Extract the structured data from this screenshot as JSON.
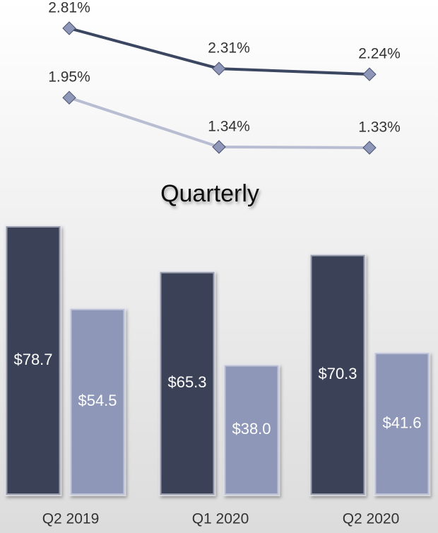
{
  "chart_data": [
    {
      "type": "line",
      "series": [
        {
          "color": "#3b4660",
          "values": [
            2.81,
            2.31,
            2.24
          ],
          "value_labels": [
            "2.81%",
            "2.31%",
            "2.24%"
          ]
        },
        {
          "color": "#b9bdd2",
          "values": [
            1.95,
            1.34,
            1.33
          ],
          "value_labels": [
            "1.95%",
            "1.34%",
            "1.33%"
          ]
        }
      ]
    },
    {
      "type": "bar",
      "title": "Quarterly",
      "categories": [
        "Q2 2019",
        "Q1 2020",
        "Q2 2020"
      ],
      "series": [
        {
          "color": "#3a4259",
          "values": [
            78.7,
            65.3,
            70.3
          ],
          "value_labels": [
            "$78.7",
            "$65.3",
            "$70.3"
          ]
        },
        {
          "color": "#8e97b8",
          "values": [
            54.5,
            38.0,
            41.6
          ],
          "value_labels": [
            "$54.5",
            "$38.0",
            "$41.6"
          ]
        }
      ]
    }
  ]
}
